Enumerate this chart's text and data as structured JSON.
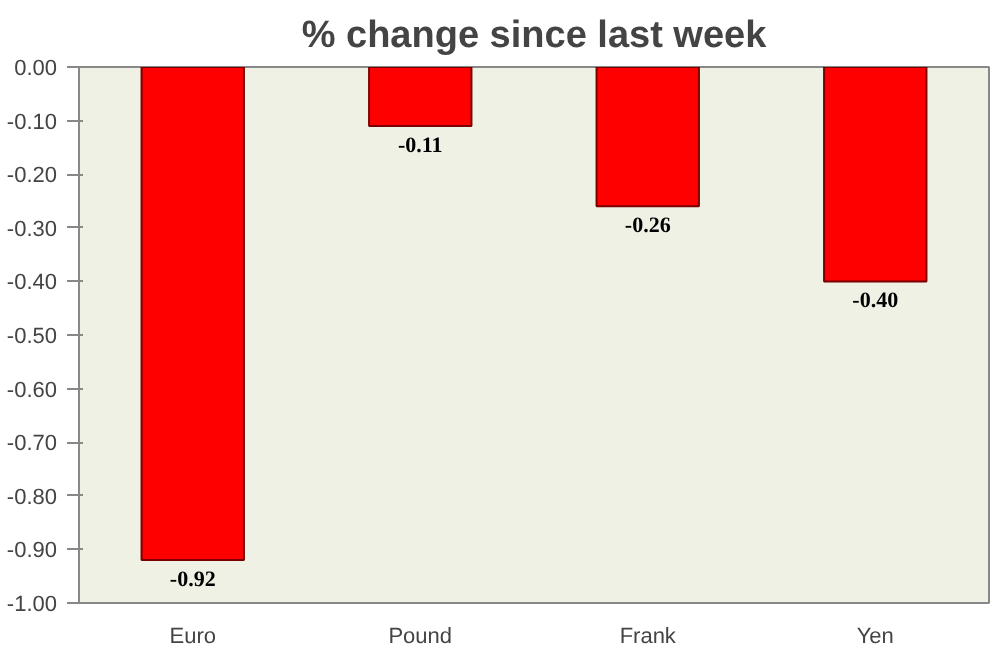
{
  "chart_data": {
    "type": "bar",
    "title": "% change since last week",
    "categories": [
      "Euro",
      "Pound",
      "Frank",
      "Yen"
    ],
    "values": [
      -0.92,
      -0.11,
      -0.26,
      -0.4
    ],
    "value_labels": [
      "-0.92",
      "-0.11",
      "-0.26",
      "-0.40"
    ],
    "color": "#ff0000",
    "ylim": [
      -1.0,
      0.0
    ],
    "yticks": [
      {
        "value": 0.0,
        "label": "0.00"
      },
      {
        "value": -0.1,
        "label": "-0.10"
      },
      {
        "value": -0.2,
        "label": "-0.20"
      },
      {
        "value": -0.3,
        "label": "-0.30"
      },
      {
        "value": -0.4,
        "label": "-0.40"
      },
      {
        "value": -0.5,
        "label": "-0.50"
      },
      {
        "value": -0.6,
        "label": "-0.60"
      },
      {
        "value": -0.7,
        "label": "-0.70"
      },
      {
        "value": -0.8,
        "label": "-0.80"
      },
      {
        "value": -0.9,
        "label": "-0.90"
      },
      {
        "value": -1.0,
        "label": "-1.00"
      }
    ]
  }
}
